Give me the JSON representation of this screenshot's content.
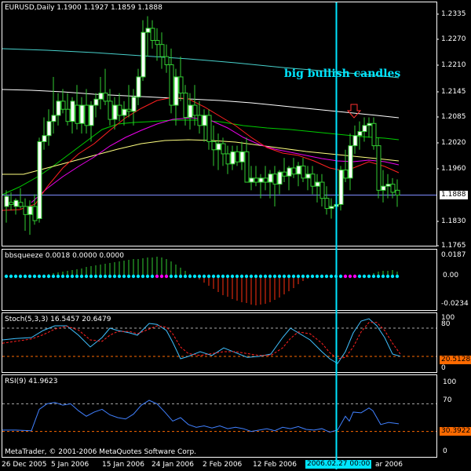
{
  "main": {
    "title": "EURUSD,Daily  1.1900 1.1927 1.1859 1.1888",
    "annotation": "big bullish candles",
    "price_labels": [
      "1.2335",
      "1.2270",
      "1.2210",
      "1.2145",
      "1.2085",
      "1.2020",
      "1.1960",
      "1.1888",
      "1.1830",
      "1.1765"
    ],
    "current_price": "1.1888"
  },
  "bbsqueeze": {
    "title": "bbsqueeze 0.0018 0.0000 0.0000",
    "scale_top": "0.0187",
    "scale_mid": "0.00",
    "scale_bottom": "-0.0234"
  },
  "stoch": {
    "title": "Stoch(5,3,3) 16.5457 20.6479",
    "scale_top": "100",
    "scale_80": "80",
    "scale_0": "0",
    "current": "20.5128"
  },
  "rsi": {
    "title": "RSI(9) 41.9623",
    "scale_100": "100",
    "scale_70": "70",
    "scale_0": "0",
    "current": "30.3922"
  },
  "footer": {
    "copyright": "MetaTrader, © 2001-2006 MetaQuotes Software Corp."
  },
  "time_axis": {
    "labels": [
      "26 Dec 2005",
      "5 Jan 2006",
      "15 Jan 2006",
      "24 Jan 2006",
      "2 Feb 2006",
      "12 Feb 2006",
      "ar 2006"
    ],
    "crosshair_label": "2006.02.27 00:00"
  },
  "colors": {
    "background": "#000000",
    "bull_candle": "#ffffff",
    "bear_candle": "#000000",
    "wick": "#32cd32",
    "crosshair": "#00e5ff",
    "annotation": "#00e5ff",
    "ma_cyan": "#48d1cc",
    "ma_white": "#ffffff",
    "ma_green": "#00cc00",
    "ma_magenta": "#ee00ee",
    "ma_yellow": "#ffff80",
    "ma_red": "#ff2020",
    "squeeze_dot": "#00e5ff",
    "squeeze_dot_alt": "#ff00ff",
    "squeeze_pos": "#32cd32",
    "squeeze_neg": "#ff3010",
    "stoch_main": "#40c0ff",
    "stoch_signal": "#ff2020",
    "rsi_line": "#4080ff",
    "level_line": "#ff6a00"
  }
}
